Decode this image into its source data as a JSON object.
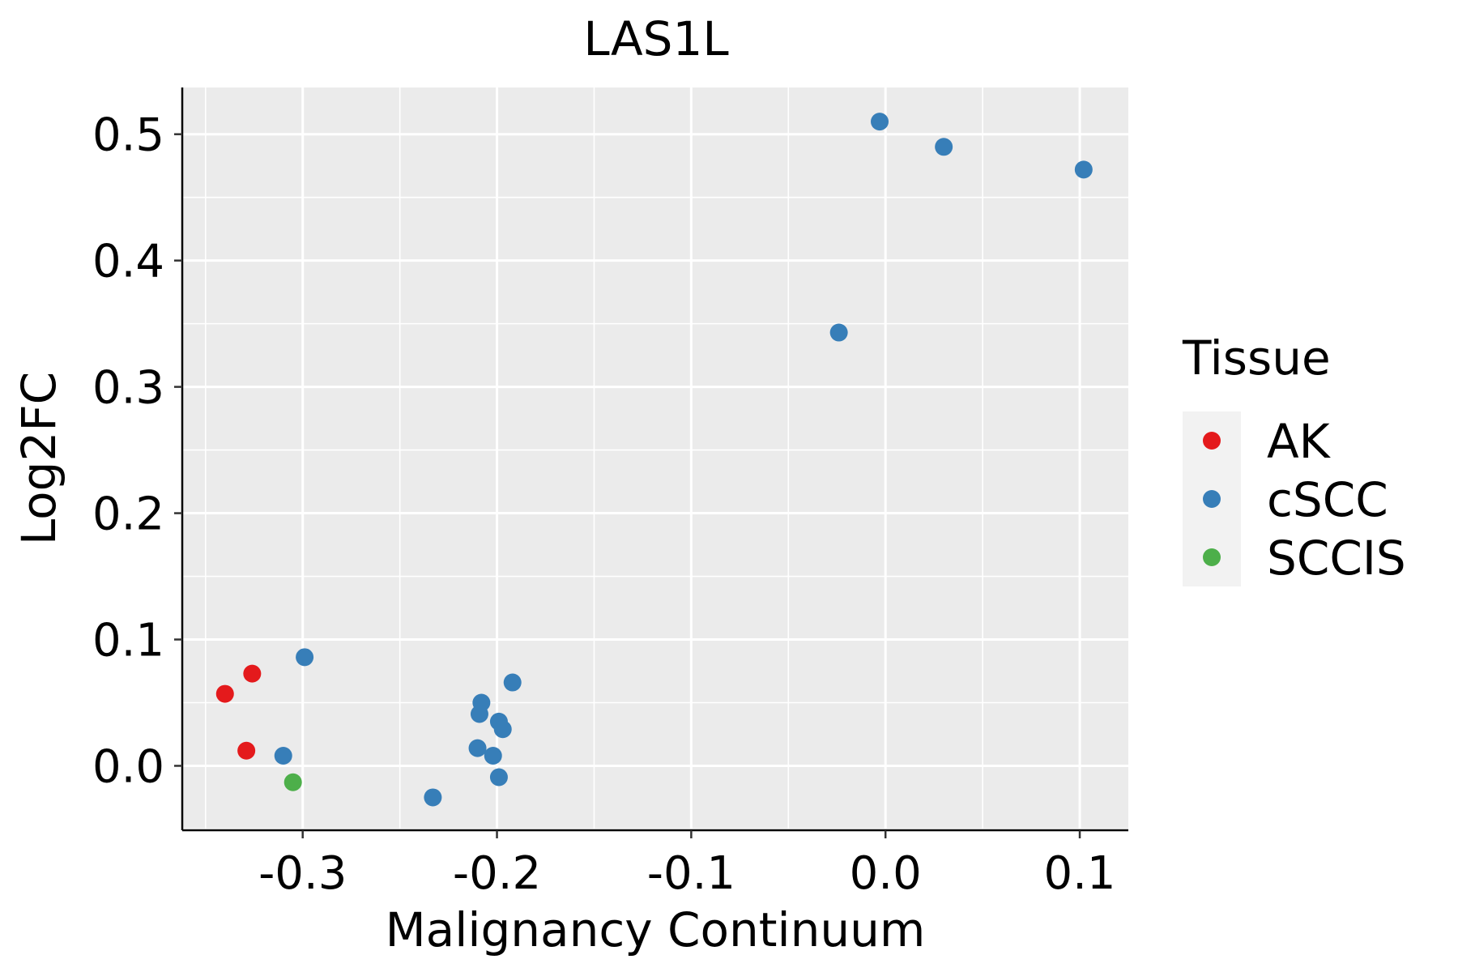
{
  "chart_data": {
    "type": "scatter",
    "title": "LAS1L",
    "xlabel": "Malignancy Continuum",
    "ylabel": "Log2FC",
    "xlim": [
      -0.362,
      0.125
    ],
    "ylim": [
      -0.051,
      0.537
    ],
    "xticks": [
      -0.3,
      -0.2,
      -0.1,
      0.0,
      0.1
    ],
    "xtick_labels": [
      "-0.3",
      "-0.2",
      "-0.1",
      "0.0",
      "0.1"
    ],
    "yticks": [
      0.0,
      0.1,
      0.2,
      0.3,
      0.4,
      0.5
    ],
    "ytick_labels": [
      "0.0",
      "0.1",
      "0.2",
      "0.3",
      "0.4",
      "0.5"
    ],
    "grid": true,
    "legend": {
      "title": "Tissue",
      "position": "right",
      "entries": [
        {
          "label": "AK",
          "color": "#E41A1C"
        },
        {
          "label": "cSCC",
          "color": "#377EB8"
        },
        {
          "label": "SCCIS",
          "color": "#4DAF4A"
        }
      ]
    },
    "series": [
      {
        "name": "AK",
        "color": "#E41A1C",
        "points": [
          {
            "x": -0.34,
            "y": 0.057
          },
          {
            "x": -0.326,
            "y": 0.073
          },
          {
            "x": -0.329,
            "y": 0.012
          }
        ]
      },
      {
        "name": "cSCC",
        "color": "#377EB8",
        "points": [
          {
            "x": -0.299,
            "y": 0.086
          },
          {
            "x": -0.31,
            "y": 0.008
          },
          {
            "x": -0.233,
            "y": -0.025
          },
          {
            "x": -0.192,
            "y": 0.066
          },
          {
            "x": -0.208,
            "y": 0.05
          },
          {
            "x": -0.209,
            "y": 0.041
          },
          {
            "x": -0.199,
            "y": 0.035
          },
          {
            "x": -0.197,
            "y": 0.029
          },
          {
            "x": -0.21,
            "y": 0.014
          },
          {
            "x": -0.202,
            "y": 0.008
          },
          {
            "x": -0.199,
            "y": -0.009
          },
          {
            "x": -0.024,
            "y": 0.343
          },
          {
            "x": -0.003,
            "y": 0.51
          },
          {
            "x": 0.03,
            "y": 0.49
          },
          {
            "x": 0.102,
            "y": 0.472
          }
        ]
      },
      {
        "name": "SCCIS",
        "color": "#4DAF4A",
        "points": [
          {
            "x": -0.305,
            "y": -0.013
          }
        ]
      }
    ]
  }
}
